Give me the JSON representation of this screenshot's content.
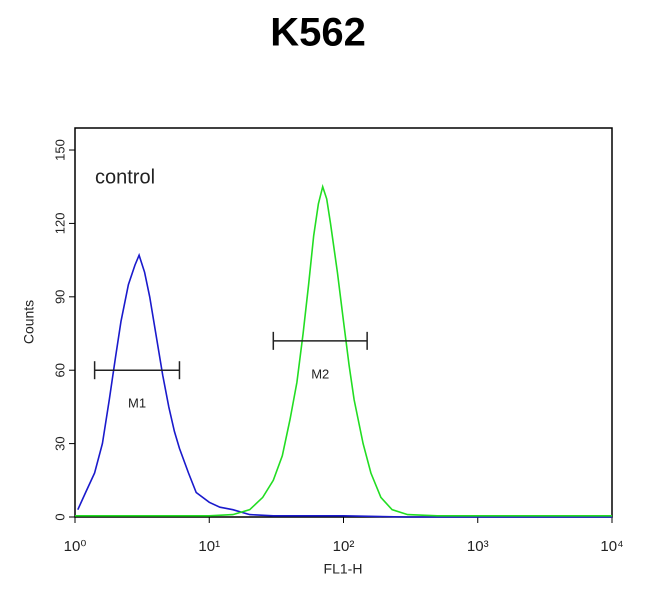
{
  "chart_data": {
    "type": "histogram-overlay",
    "title": "K562",
    "x_label": "FL1-H",
    "y_label": "Counts",
    "annotation": "control",
    "xscale": "log",
    "xlim": [
      1,
      10000
    ],
    "ylim": [
      0,
      159
    ],
    "xticks": [
      {
        "value": 1,
        "label": "10⁰"
      },
      {
        "value": 10,
        "label": "10¹"
      },
      {
        "value": 100,
        "label": "10²"
      },
      {
        "value": 1000,
        "label": "10³"
      },
      {
        "value": 10000,
        "label": "10⁴"
      }
    ],
    "yticks": [
      0,
      30,
      60,
      90,
      120,
      150
    ],
    "series": [
      {
        "color": "#1a1acc",
        "x": [
          1.05,
          1.2,
          1.4,
          1.6,
          1.8,
          2.0,
          2.2,
          2.5,
          2.8,
          3.0,
          3.3,
          3.6,
          4.0,
          4.5,
          5.0,
          5.5,
          6.0,
          7.0,
          8.0,
          10,
          12,
          15,
          20,
          30,
          50,
          100,
          300,
          1000,
          10000
        ],
        "values": [
          3,
          10,
          18,
          30,
          48,
          65,
          80,
          95,
          103,
          107,
          100,
          90,
          75,
          58,
          45,
          35,
          28,
          18,
          10,
          6,
          4,
          3,
          1,
          0.5,
          0.5,
          0.5,
          0,
          0,
          0
        ]
      },
      {
        "color": "#22dd22",
        "x": [
          1,
          10,
          15,
          20,
          25,
          30,
          35,
          40,
          45,
          50,
          55,
          60,
          65,
          70,
          75,
          80,
          90,
          100,
          110,
          120,
          140,
          160,
          190,
          230,
          300,
          500,
          10000
        ],
        "values": [
          0.5,
          0.5,
          1,
          3,
          8,
          15,
          25,
          40,
          55,
          75,
          95,
          115,
          128,
          135,
          130,
          120,
          100,
          80,
          62,
          48,
          30,
          18,
          8,
          3,
          1,
          0.5,
          0.5
        ]
      }
    ],
    "markers": [
      {
        "label": "M1",
        "range": [
          1.4,
          6.0
        ],
        "level": 60
      },
      {
        "label": "M2",
        "range": [
          30,
          150
        ],
        "level": 72
      }
    ]
  }
}
